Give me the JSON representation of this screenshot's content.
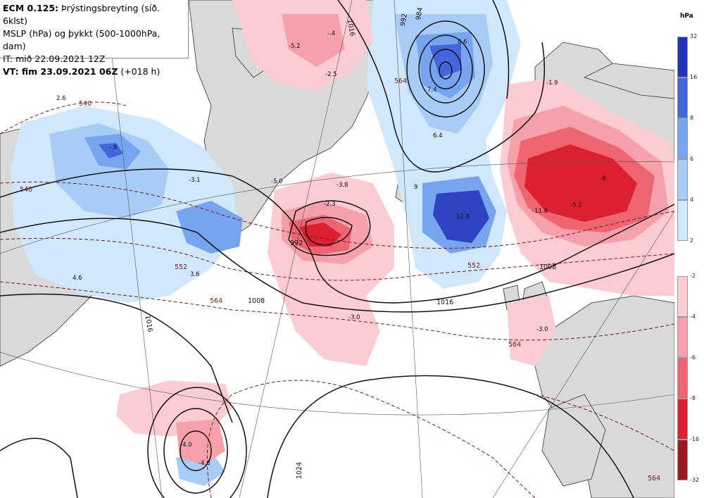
{
  "header": {
    "line1_bold": "ECM 0.125:",
    "line1_rest": " Þrýstingsbreyting (síð. 6klst)",
    "line2": "MSLP (hPa) og þykkt (500-1000hPa, dam)",
    "line3": "IT: mið 22.09.2021 12Z",
    "line4_bold": "VT: fim 23.09.2021 06Z",
    "line4_rest": " (+018 h)"
  },
  "legend": {
    "unit": "hPa",
    "positive_colors": [
      "#2233bb",
      "#4466dd",
      "#77a4ee",
      "#a7cdf6",
      "#d0e8fb"
    ],
    "positive_labels": [
      "32",
      "16",
      "8",
      "6",
      "4",
      "2"
    ],
    "negative_colors": [
      "#fbcdd3",
      "#f5a0aa",
      "#ee6470",
      "#dd2030",
      "#991822"
    ],
    "negative_labels": [
      "-2",
      "-4",
      "-6",
      "-8",
      "-16",
      "-32"
    ]
  },
  "map": {
    "land_color": "#d9d9d9",
    "sea_color": "#ffffff",
    "isobar_labels": [
      "1008",
      "1016",
      "1024",
      "992",
      "1008",
      "1016",
      "1016",
      "992",
      "984"
    ],
    "thickness_labels": [
      "540",
      "540",
      "552",
      "552",
      "564",
      "564",
      "564",
      "564"
    ],
    "tendency_values": [
      "2.6",
      "-5.2",
      "-2.5",
      "-.4",
      "6.6",
      "7.4",
      "6.4",
      "-.9",
      "-3.1",
      "-5.0",
      "-3.8",
      "-2.3",
      "3.6",
      "4.6",
      "-3.0",
      "12.8",
      "-11.8",
      "-5.2",
      "-9.",
      "-1.9",
      "-3.0",
      "-4.0",
      "-4.8",
      "9"
    ]
  }
}
